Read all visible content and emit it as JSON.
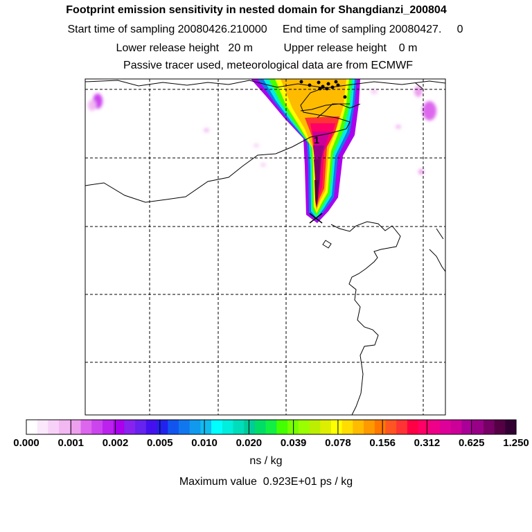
{
  "titles": {
    "line1": "Footprint emission sensitivity in nested domain for Shangdianzi_200804",
    "line2": "Start time of sampling 20080426.210000     End time of sampling 20080427.     0",
    "line3": "Lower release height   20 m          Upper release height    0 m",
    "line4": "Passive tracer used, meteorological data are from ECMWF"
  },
  "map": {
    "contour_label": "1",
    "release_marker": "x-marker-icon"
  },
  "colorbar": {
    "ticks": [
      "0.000",
      "0.001",
      "0.002",
      "0.005",
      "0.010",
      "0.020",
      "0.039",
      "0.078",
      "0.156",
      "0.312",
      "0.625",
      "1.250"
    ],
    "colors": [
      "#ffffff",
      "#fbe8fb",
      "#f7d1f7",
      "#f2b8f2",
      "#eda0ee",
      "#dd66ee",
      "#cc44ee",
      "#bb22ee",
      "#aa00ee",
      "#8822ee",
      "#6622ee",
      "#4411ee",
      "#2222ee",
      "#1155ee",
      "#1177ee",
      "#1199ee",
      "#11bbee",
      "#00ffff",
      "#00eedd",
      "#00ddbb",
      "#00cc99",
      "#00dd66",
      "#11ee44",
      "#44ff00",
      "#77ff00",
      "#99ff00",
      "#bbee00",
      "#ddee00",
      "#ffff00",
      "#ffdd00",
      "#ffbb00",
      "#ff9900",
      "#ff7700",
      "#ff5522",
      "#ff3333",
      "#ff0044",
      "#ff0066",
      "#ee0088",
      "#dd0099",
      "#cc0099",
      "#aa0099",
      "#990088",
      "#770066",
      "#550044",
      "#330033"
    ],
    "units": "ns / kg",
    "max_value_text": "Maximum value  0.923E+01 ps / kg"
  }
}
